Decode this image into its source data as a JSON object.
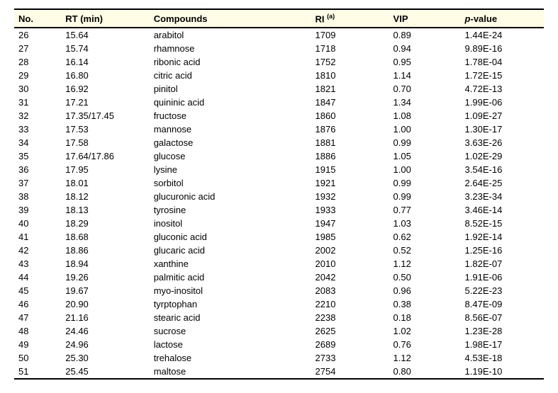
{
  "columns": {
    "no": "No.",
    "rt": "RT (min)",
    "comp": "Compounds",
    "ri": "RI",
    "ri_sup": "(a)",
    "vip": "VIP",
    "p_prefix": "p",
    "p_suffix": "-value"
  },
  "rows": [
    {
      "no": "26",
      "rt": "15.64",
      "comp": "arabitol",
      "ri": "1709",
      "vip": "0.89",
      "p": "1.44E-24"
    },
    {
      "no": "27",
      "rt": "15.74",
      "comp": "rhamnose",
      "ri": "1718",
      "vip": "0.94",
      "p": "9.89E-16"
    },
    {
      "no": "28",
      "rt": "16.14",
      "comp": "ribonic acid",
      "ri": "1752",
      "vip": "0.95",
      "p": "1.78E-04"
    },
    {
      "no": "29",
      "rt": "16.80",
      "comp": "citric acid",
      "ri": "1810",
      "vip": "1.14",
      "p": "1.72E-15"
    },
    {
      "no": "30",
      "rt": "16.92",
      "comp": "pinitol",
      "ri": "1821",
      "vip": "0.70",
      "p": "4.72E-13"
    },
    {
      "no": "31",
      "rt": "17.21",
      "comp": "quininic acid",
      "ri": "1847",
      "vip": "1.34",
      "p": "1.99E-06"
    },
    {
      "no": "32",
      "rt": "17.35/17.45",
      "comp": "fructose",
      "ri": "1860",
      "vip": "1.08",
      "p": "1.09E-27"
    },
    {
      "no": "33",
      "rt": "17.53",
      "comp": "mannose",
      "ri": "1876",
      "vip": "1.00",
      "p": "1.30E-17"
    },
    {
      "no": "34",
      "rt": "17.58",
      "comp": "galactose",
      "ri": "1881",
      "vip": "0.99",
      "p": "3.63E-26"
    },
    {
      "no": "35",
      "rt": "17.64/17.86",
      "comp": "glucose",
      "ri": "1886",
      "vip": "1.05",
      "p": "1.02E-29"
    },
    {
      "no": "36",
      "rt": "17.95",
      "comp": "lysine",
      "ri": "1915",
      "vip": "1.00",
      "p": "3.54E-16"
    },
    {
      "no": "37",
      "rt": "18.01",
      "comp": "sorbitol",
      "ri": "1921",
      "vip": "0.99",
      "p": "2.64E-25"
    },
    {
      "no": "38",
      "rt": "18.12",
      "comp": "glucuronic acid",
      "ri": "1932",
      "vip": "0.99",
      "p": "3.23E-34"
    },
    {
      "no": "39",
      "rt": "18.13",
      "comp": "tyrosine",
      "ri": "1933",
      "vip": "0.77",
      "p": "3.46E-14"
    },
    {
      "no": "40",
      "rt": "18.29",
      "comp": "inositol",
      "ri": "1947",
      "vip": "1.03",
      "p": "8.52E-15"
    },
    {
      "no": "41",
      "rt": "18.68",
      "comp": "gluconic acid",
      "ri": "1985",
      "vip": "0.62",
      "p": "1.92E-14"
    },
    {
      "no": "42",
      "rt": "18.86",
      "comp": "glucaric acid",
      "ri": "2002",
      "vip": "0.52",
      "p": "1.25E-16"
    },
    {
      "no": "43",
      "rt": "18.94",
      "comp": "xanthine",
      "ri": "2010",
      "vip": "1.12",
      "p": "1.82E-07"
    },
    {
      "no": "44",
      "rt": "19.26",
      "comp": "palmitic acid",
      "ri": "2042",
      "vip": "0.50",
      "p": "1.91E-06"
    },
    {
      "no": "45",
      "rt": "19.67",
      "comp": "myo-inositol",
      "ri": "2083",
      "vip": "0.96",
      "p": "5.22E-23"
    },
    {
      "no": "46",
      "rt": "20.90",
      "comp": "tyrptophan",
      "ri": "2210",
      "vip": "0.38",
      "p": "8.47E-09"
    },
    {
      "no": "47",
      "rt": "21.16",
      "comp": "stearic acid",
      "ri": "2238",
      "vip": "0.18",
      "p": "8.56E-07"
    },
    {
      "no": "48",
      "rt": "24.46",
      "comp": "sucrose",
      "ri": "2625",
      "vip": "1.02",
      "p": "1.23E-28"
    },
    {
      "no": "49",
      "rt": "24.96",
      "comp": "lactose",
      "ri": "2689",
      "vip": "0.76",
      "p": "1.98E-17"
    },
    {
      "no": "50",
      "rt": "25.30",
      "comp": "trehalose",
      "ri": "2733",
      "vip": "1.12",
      "p": "4.53E-18"
    },
    {
      "no": "51",
      "rt": "25.45",
      "comp": "maltose",
      "ri": "2754",
      "vip": "0.80",
      "p": "1.19E-10"
    }
  ]
}
